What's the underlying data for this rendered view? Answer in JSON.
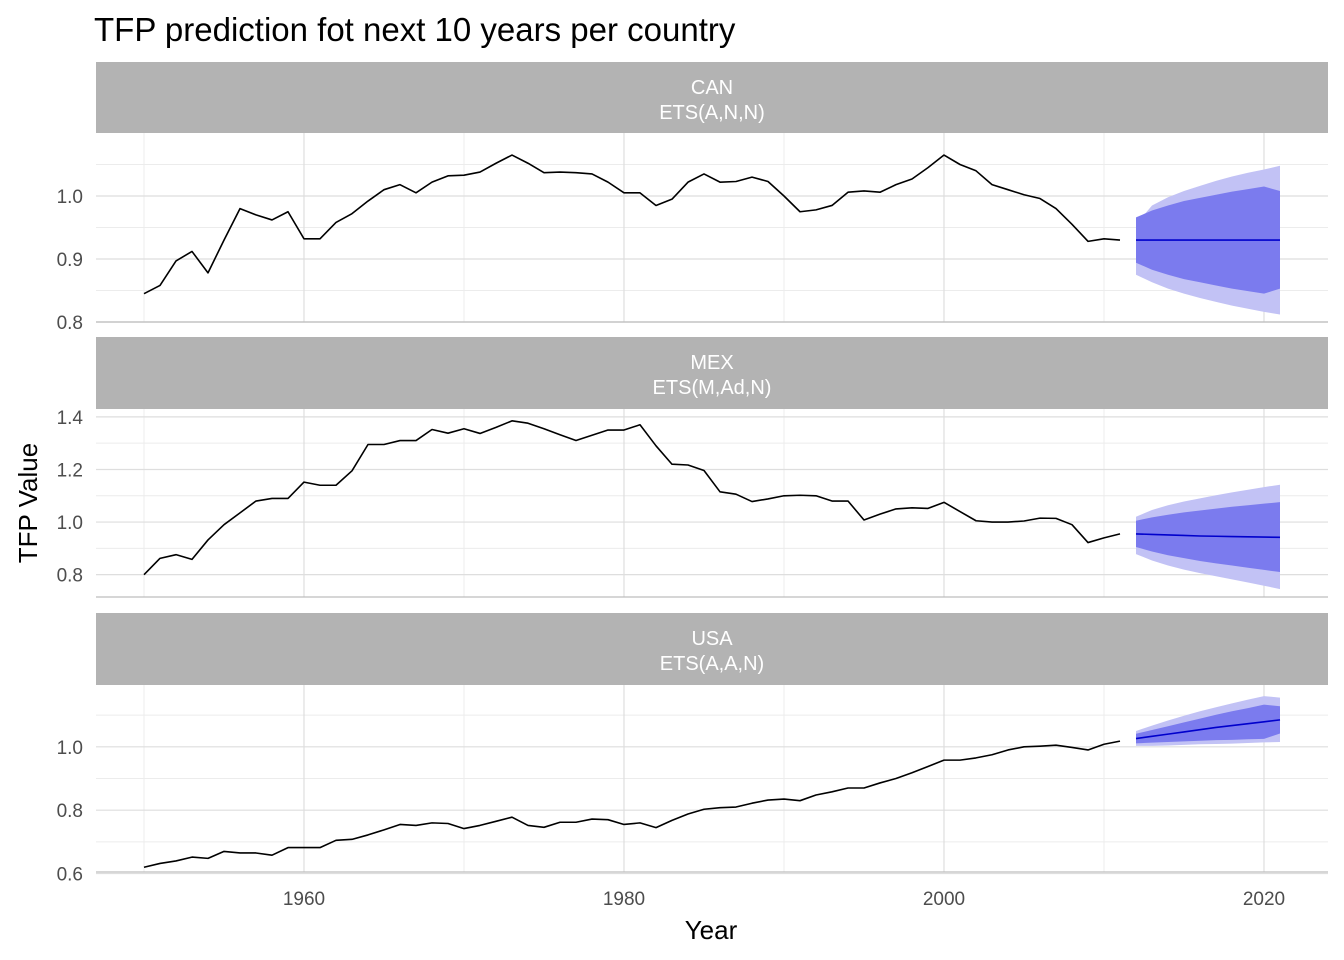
{
  "chart_data": {
    "type": "line",
    "title": "TFP prediction fot next 10 years per country",
    "xlabel": "Year",
    "ylabel": "TFP Value",
    "x_ticks": [
      "1960",
      "1980",
      "2000",
      "2020"
    ],
    "xlim": [
      1947,
      2024
    ],
    "grid": true,
    "colors": {
      "history": "#000000",
      "forecast": "#0000cc",
      "band80": "#7b7bee",
      "band95": "#c2c2f5",
      "strip": "#b3b3b3",
      "grid": "#dedede"
    },
    "facets": [
      {
        "country": "CAN",
        "model": "ETS(A,N,N)",
        "ylim": [
          0.8,
          1.1
        ],
        "y_ticks": [
          "0.8",
          "0.9",
          "1.0"
        ],
        "history": {
          "x": [
            1950,
            1951,
            1952,
            1953,
            1954,
            1955,
            1956,
            1957,
            1958,
            1959,
            1960,
            1961,
            1962,
            1963,
            1964,
            1965,
            1966,
            1967,
            1968,
            1969,
            1970,
            1971,
            1972,
            1973,
            1974,
            1975,
            1976,
            1977,
            1978,
            1979,
            1980,
            1981,
            1982,
            1983,
            1984,
            1985,
            1986,
            1987,
            1988,
            1989,
            1990,
            1991,
            1992,
            1993,
            1994,
            1995,
            1996,
            1997,
            1998,
            1999,
            2000,
            2001,
            2002,
            2003,
            2004,
            2005,
            2006,
            2007,
            2008,
            2009,
            2010,
            2011
          ],
          "y": [
            0.845,
            0.858,
            0.897,
            0.912,
            0.878,
            0.93,
            0.98,
            0.97,
            0.962,
            0.975,
            0.932,
            0.932,
            0.958,
            0.972,
            0.992,
            1.01,
            1.018,
            1.005,
            1.022,
            1.032,
            1.033,
            1.038,
            1.052,
            1.065,
            1.052,
            1.037,
            1.038,
            1.037,
            1.035,
            1.022,
            1.005,
            1.005,
            0.985,
            0.995,
            1.022,
            1.035,
            1.022,
            1.023,
            1.03,
            1.023,
            1.0,
            0.975,
            0.978,
            0.985,
            1.006,
            1.008,
            1.006,
            1.018,
            1.027,
            1.045,
            1.065,
            1.05,
            1.04,
            1.018,
            1.01,
            1.002,
            0.996,
            0.98,
            0.955,
            0.928,
            0.932,
            0.93
          ]
        },
        "forecast": {
          "x": [
            2012,
            2013,
            2014,
            2015,
            2016,
            2017,
            2018,
            2019,
            2020,
            2021
          ],
          "mean": [
            0.93,
            0.93,
            0.93,
            0.93,
            0.93,
            0.93,
            0.93,
            0.93,
            0.93,
            0.93
          ],
          "lo80": [
            0.894,
            0.883,
            0.875,
            0.868,
            0.863,
            0.858,
            0.853,
            0.849,
            0.845,
            0.853
          ],
          "hi80": [
            0.966,
            0.977,
            0.985,
            0.992,
            0.997,
            1.002,
            1.007,
            1.011,
            1.015,
            1.008
          ],
          "lo95": [
            0.875,
            0.863,
            0.853,
            0.845,
            0.838,
            0.832,
            0.826,
            0.821,
            0.816,
            0.812
          ],
          "hi95": [
            0.955,
            0.985,
            0.998,
            1.008,
            1.016,
            1.024,
            1.031,
            1.037,
            1.042,
            1.048
          ]
        }
      },
      {
        "country": "MEX",
        "model": "ETS(M,Ad,N)",
        "ylim": [
          0.715,
          1.43
        ],
        "y_ticks": [
          "0.8",
          "1.0",
          "1.2",
          "1.4"
        ],
        "history": {
          "x": [
            1950,
            1951,
            1952,
            1953,
            1954,
            1955,
            1956,
            1957,
            1958,
            1959,
            1960,
            1961,
            1962,
            1963,
            1964,
            1965,
            1966,
            1967,
            1968,
            1969,
            1970,
            1971,
            1972,
            1973,
            1974,
            1975,
            1976,
            1977,
            1978,
            1979,
            1980,
            1981,
            1982,
            1983,
            1984,
            1985,
            1986,
            1987,
            1988,
            1989,
            1990,
            1991,
            1992,
            1993,
            1994,
            1995,
            1996,
            1997,
            1998,
            1999,
            2000,
            2001,
            2002,
            2003,
            2004,
            2005,
            2006,
            2007,
            2008,
            2009,
            2010,
            2011
          ],
          "y": [
            0.8,
            0.862,
            0.876,
            0.858,
            0.932,
            0.99,
            1.035,
            1.08,
            1.09,
            1.09,
            1.152,
            1.14,
            1.14,
            1.195,
            1.295,
            1.295,
            1.31,
            1.31,
            1.352,
            1.338,
            1.355,
            1.337,
            1.36,
            1.385,
            1.376,
            1.355,
            1.332,
            1.31,
            1.33,
            1.35,
            1.35,
            1.37,
            1.29,
            1.22,
            1.217,
            1.196,
            1.115,
            1.106,
            1.078,
            1.088,
            1.1,
            1.102,
            1.1,
            1.08,
            1.08,
            1.008,
            1.03,
            1.05,
            1.054,
            1.052,
            1.075,
            1.04,
            1.005,
            1.0,
            1.0,
            1.004,
            1.015,
            1.014,
            0.99,
            0.922,
            0.94,
            0.955
          ]
        },
        "forecast": {
          "x": [
            2012,
            2013,
            2014,
            2015,
            2016,
            2017,
            2018,
            2019,
            2020,
            2021
          ],
          "mean": [
            0.955,
            0.953,
            0.951,
            0.949,
            0.947,
            0.946,
            0.945,
            0.944,
            0.943,
            0.942
          ],
          "lo80": [
            0.905,
            0.888,
            0.874,
            0.863,
            0.852,
            0.843,
            0.835,
            0.826,
            0.818,
            0.81
          ],
          "hi80": [
            1.005,
            1.018,
            1.028,
            1.037,
            1.044,
            1.051,
            1.058,
            1.064,
            1.07,
            1.076
          ],
          "lo95": [
            0.878,
            0.854,
            0.835,
            0.819,
            0.806,
            0.794,
            0.782,
            0.77,
            0.758,
            0.745
          ],
          "hi95": [
            1.02,
            1.046,
            1.064,
            1.078,
            1.09,
            1.102,
            1.113,
            1.123,
            1.133,
            1.142
          ]
        }
      },
      {
        "country": "USA",
        "model": "ETS(A,A,N)",
        "ylim": [
          0.605,
          1.195
        ],
        "y_ticks": [
          "0.6",
          "0.8",
          "1.0"
        ],
        "history": {
          "x": [
            1950,
            1951,
            1952,
            1953,
            1954,
            1955,
            1956,
            1957,
            1958,
            1959,
            1960,
            1961,
            1962,
            1963,
            1964,
            1965,
            1966,
            1967,
            1968,
            1969,
            1970,
            1971,
            1972,
            1973,
            1974,
            1975,
            1976,
            1977,
            1978,
            1979,
            1980,
            1981,
            1982,
            1983,
            1984,
            1985,
            1986,
            1987,
            1988,
            1989,
            1990,
            1991,
            1992,
            1993,
            1994,
            1995,
            1996,
            1997,
            1998,
            1999,
            2000,
            2001,
            2002,
            2003,
            2004,
            2005,
            2006,
            2007,
            2008,
            2009,
            2010,
            2011
          ],
          "y": [
            0.62,
            0.632,
            0.64,
            0.652,
            0.648,
            0.67,
            0.665,
            0.665,
            0.658,
            0.682,
            0.682,
            0.682,
            0.705,
            0.708,
            0.722,
            0.738,
            0.755,
            0.752,
            0.76,
            0.758,
            0.742,
            0.752,
            0.765,
            0.778,
            0.752,
            0.746,
            0.762,
            0.762,
            0.772,
            0.77,
            0.755,
            0.76,
            0.745,
            0.768,
            0.788,
            0.803,
            0.808,
            0.81,
            0.822,
            0.832,
            0.835,
            0.83,
            0.848,
            0.858,
            0.87,
            0.87,
            0.886,
            0.9,
            0.918,
            0.938,
            0.958,
            0.958,
            0.965,
            0.975,
            0.99,
            1.0,
            1.002,
            1.005,
            0.998,
            0.99,
            1.008,
            1.018
          ]
        },
        "forecast": {
          "x": [
            2012,
            2013,
            2014,
            2015,
            2016,
            2017,
            2018,
            2019,
            2020,
            2021
          ],
          "mean": [
            1.026,
            1.033,
            1.04,
            1.047,
            1.054,
            1.061,
            1.067,
            1.073,
            1.079,
            1.085
          ],
          "lo80": [
            1.011,
            1.013,
            1.015,
            1.017,
            1.019,
            1.021,
            1.022,
            1.024,
            1.025,
            1.042
          ],
          "hi80": [
            1.041,
            1.053,
            1.065,
            1.077,
            1.089,
            1.101,
            1.112,
            1.122,
            1.133,
            1.128
          ],
          "lo95": [
            1.003,
            1.003,
            1.004,
            1.006,
            1.008,
            1.009,
            1.01,
            1.012,
            1.014,
            1.015
          ],
          "hi95": [
            1.05,
            1.067,
            1.083,
            1.098,
            1.112,
            1.125,
            1.137,
            1.149,
            1.16,
            1.155
          ]
        }
      }
    ]
  }
}
